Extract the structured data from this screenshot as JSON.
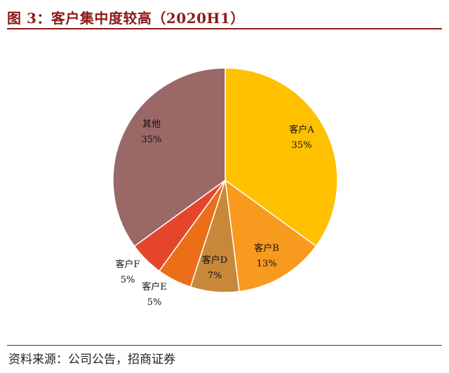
{
  "header": {
    "title": "图 3：客户集中度较高（2020H1）"
  },
  "footer": {
    "source": "资料来源：公司公告，招商证券"
  },
  "chart_data": {
    "type": "pie",
    "legend": "none",
    "slices": [
      {
        "name": "客户A",
        "value": 35,
        "label": "35%",
        "color": "#FFC000"
      },
      {
        "name": "客户B",
        "value": 13,
        "label": "13%",
        "color": "#F79A1E"
      },
      {
        "name": "客户D",
        "value": 7,
        "label": "7%",
        "color": "#C8883A"
      },
      {
        "name": "客户E",
        "value": 5,
        "label": "5%",
        "color": "#EB6E19"
      },
      {
        "name": "客户F",
        "value": 5,
        "label": "5%",
        "color": "#E5462B"
      },
      {
        "name": "其他",
        "value": 35,
        "label": "35%",
        "color": "#9A6866"
      }
    ]
  }
}
